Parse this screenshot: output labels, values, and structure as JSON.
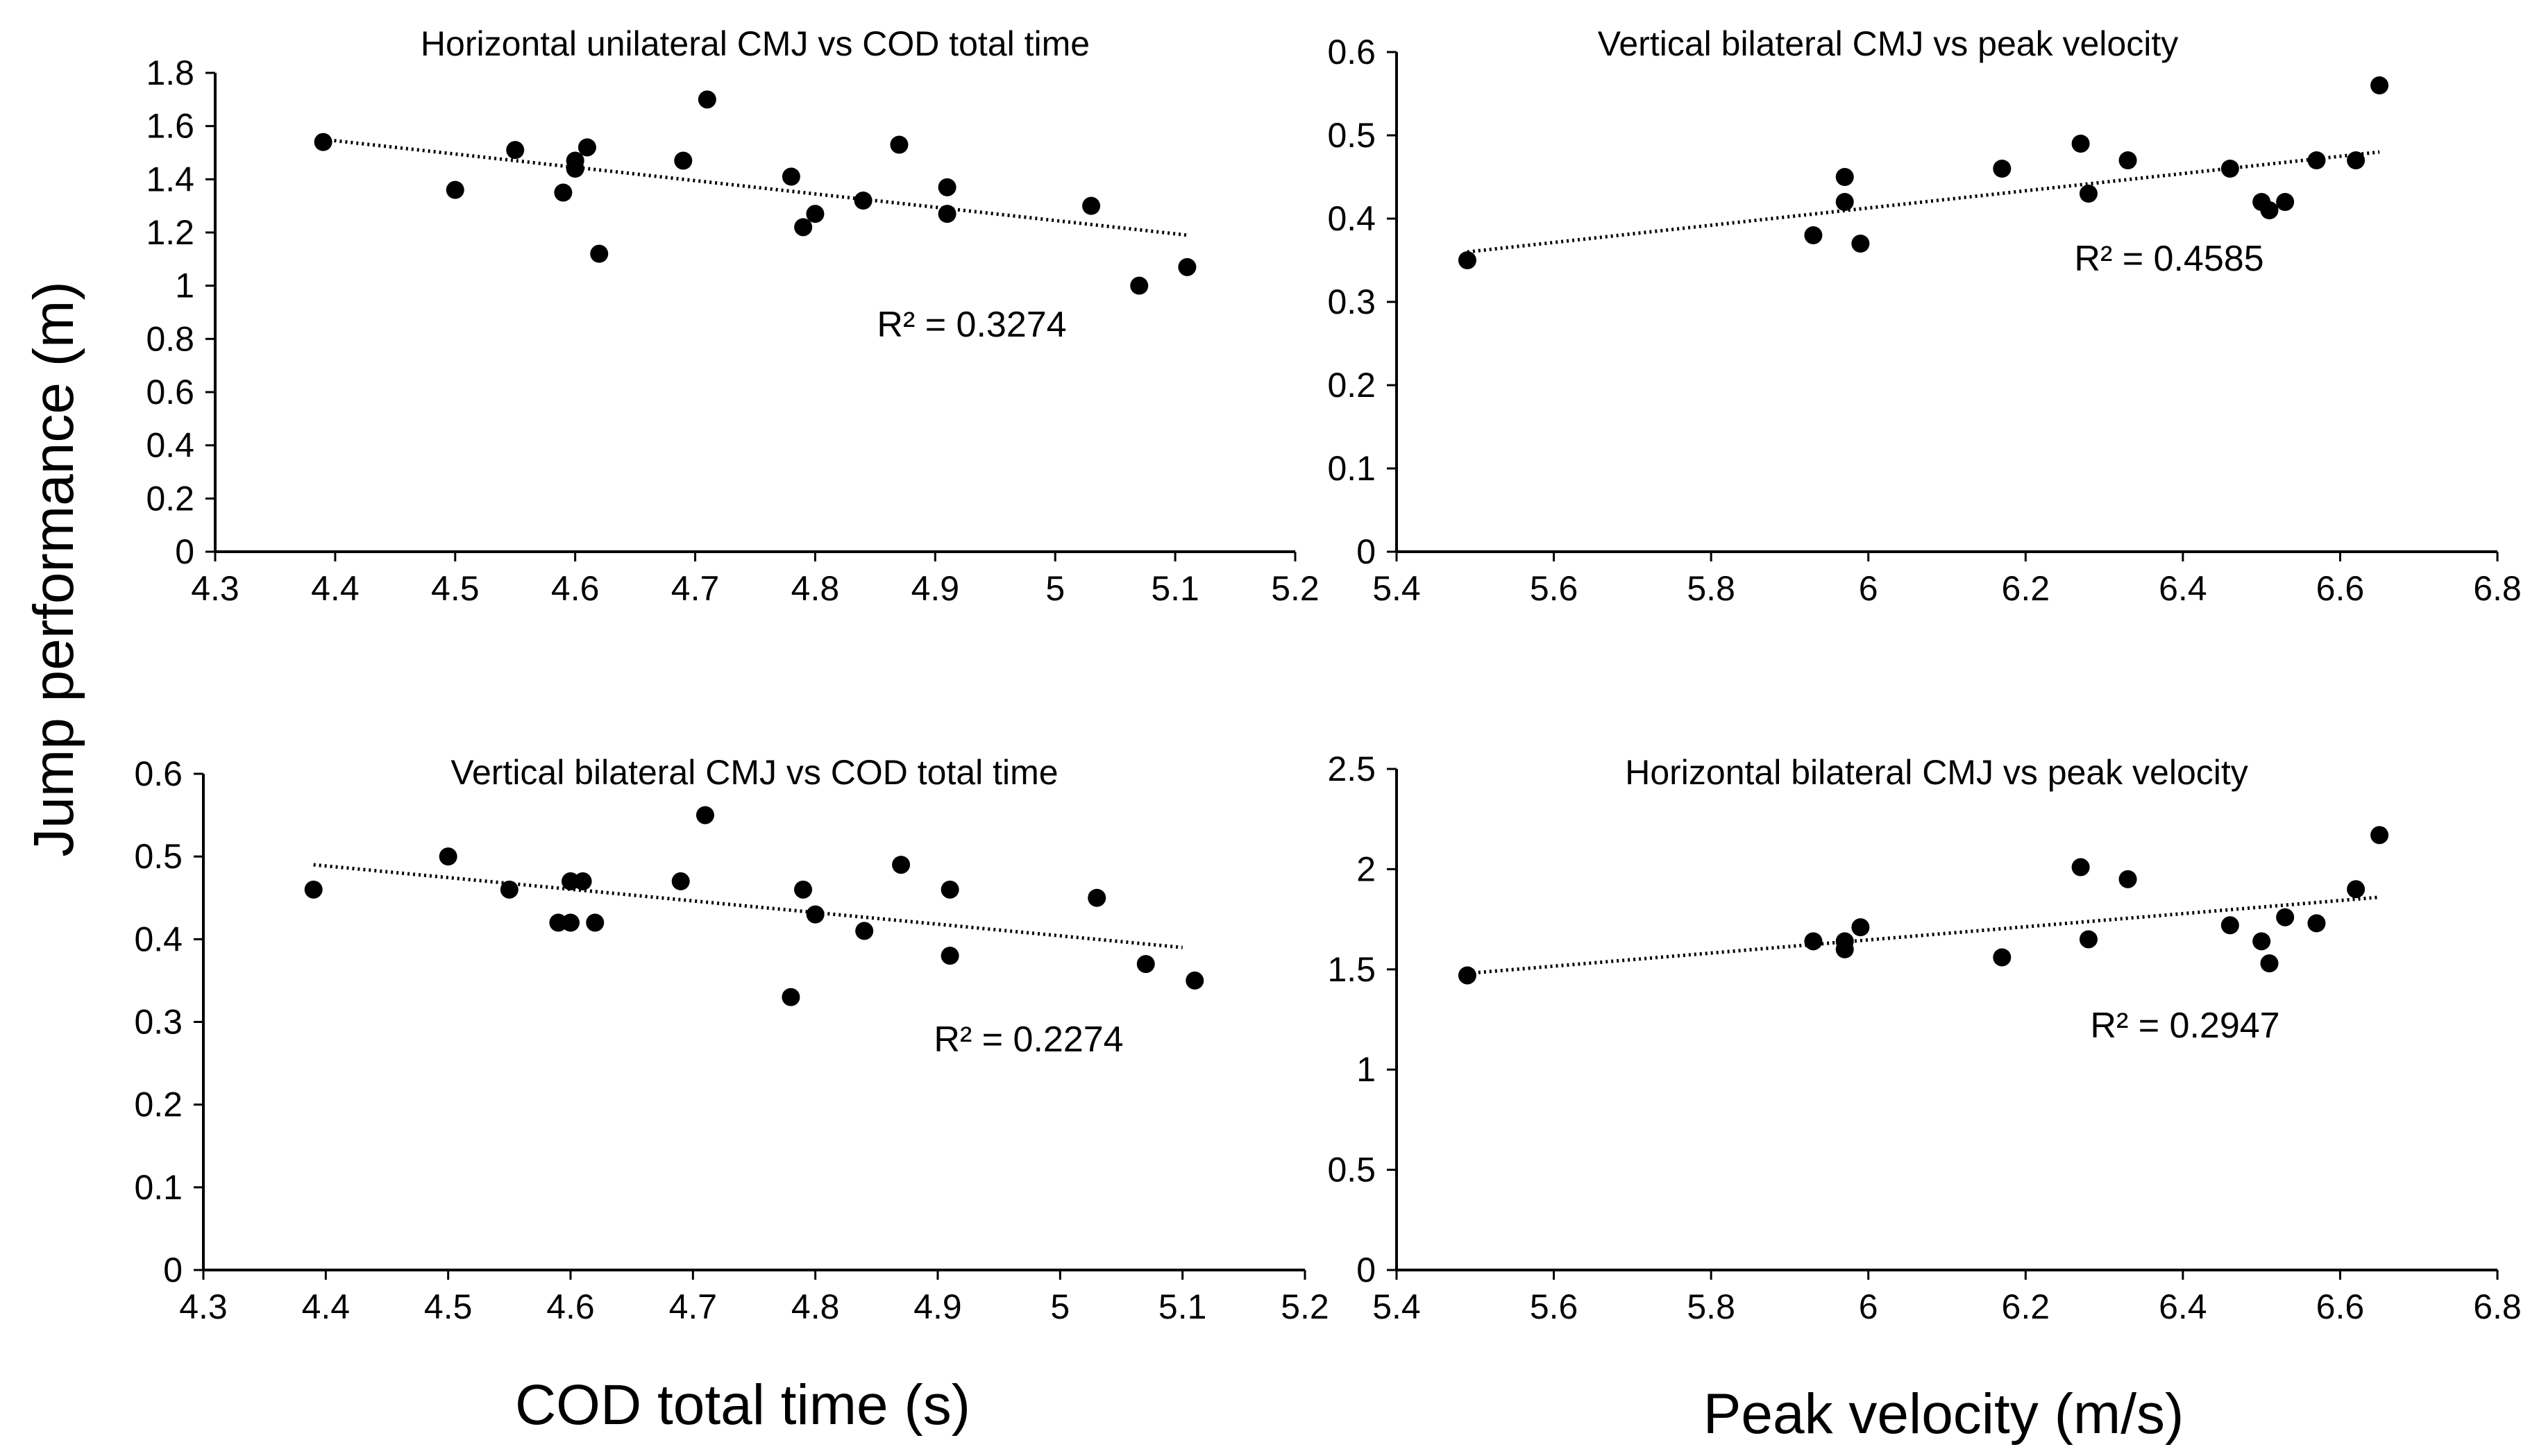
{
  "figure": {
    "ylabel": "Jump performance (m)",
    "xlabel_left": "COD total time (s)",
    "xlabel_right": "Peak velocity (m/s)"
  },
  "chart_data": [
    {
      "type": "scatter",
      "title": "Horizontal unilateral CMJ vs COD total time",
      "xlabel": "COD total time (s)",
      "ylabel": "Jump performance (m)",
      "xlim": [
        4.3,
        5.2
      ],
      "ylim": [
        0,
        1.8
      ],
      "xticks": [
        "4.3",
        "4.4",
        "4.5",
        "4.6",
        "4.7",
        "4.8",
        "4.9",
        "5",
        "5.1",
        "5.2"
      ],
      "yticks": [
        "0",
        "0.2",
        "0.4",
        "0.6",
        "0.8",
        "1",
        "1.2",
        "1.4",
        "1.6",
        "1.8"
      ],
      "r2": "R² = 0.3274",
      "trend": {
        "x": [
          4.39,
          5.11
        ],
        "y": [
          1.55,
          1.19
        ]
      },
      "points": [
        [
          4.39,
          1.54
        ],
        [
          4.5,
          1.36
        ],
        [
          4.55,
          1.51
        ],
        [
          4.59,
          1.35
        ],
        [
          4.6,
          1.47
        ],
        [
          4.6,
          1.44
        ],
        [
          4.61,
          1.52
        ],
        [
          4.62,
          1.12
        ],
        [
          4.69,
          1.47
        ],
        [
          4.71,
          1.7
        ],
        [
          4.78,
          1.41
        ],
        [
          4.79,
          1.22
        ],
        [
          4.8,
          1.27
        ],
        [
          4.84,
          1.32
        ],
        [
          4.87,
          1.53
        ],
        [
          4.91,
          1.37
        ],
        [
          4.91,
          1.27
        ],
        [
          5.03,
          1.3
        ],
        [
          5.07,
          1.0
        ],
        [
          5.11,
          1.07
        ]
      ]
    },
    {
      "type": "scatter",
      "title": "Vertical bilateral CMJ vs peak velocity",
      "xlabel": "Peak velocity (m/s)",
      "ylabel": "Jump performance (m)",
      "xlim": [
        5.4,
        6.8
      ],
      "ylim": [
        0,
        0.6
      ],
      "xticks": [
        "5.4",
        "5.6",
        "5.8",
        "6",
        "6.2",
        "6.4",
        "6.6",
        "6.8"
      ],
      "yticks": [
        "0",
        "0.1",
        "0.2",
        "0.3",
        "0.4",
        "0.5",
        "0.6"
      ],
      "r2": "R² = 0.4585",
      "trend": {
        "x": [
          5.49,
          6.65
        ],
        "y": [
          0.36,
          0.48
        ]
      },
      "points": [
        [
          5.49,
          0.35
        ],
        [
          5.93,
          0.38
        ],
        [
          5.97,
          0.45
        ],
        [
          5.97,
          0.42
        ],
        [
          5.99,
          0.37
        ],
        [
          6.17,
          0.46
        ],
        [
          6.27,
          0.49
        ],
        [
          6.28,
          0.43
        ],
        [
          6.33,
          0.47
        ],
        [
          6.46,
          0.46
        ],
        [
          6.5,
          0.42
        ],
        [
          6.51,
          0.41
        ],
        [
          6.53,
          0.42
        ],
        [
          6.57,
          0.47
        ],
        [
          6.62,
          0.47
        ],
        [
          6.65,
          0.56
        ]
      ]
    },
    {
      "type": "scatter",
      "title": "Vertical bilateral CMJ vs COD total time",
      "xlabel": "COD total time (s)",
      "ylabel": "Jump performance (m)",
      "xlim": [
        4.3,
        5.2
      ],
      "ylim": [
        0,
        0.6
      ],
      "xticks": [
        "4.3",
        "4.4",
        "4.5",
        "4.6",
        "4.7",
        "4.8",
        "4.9",
        "5",
        "5.1",
        "5.2"
      ],
      "yticks": [
        "0",
        "0.1",
        "0.2",
        "0.3",
        "0.4",
        "0.5",
        "0.6"
      ],
      "r2": "R² = 0.2274",
      "trend": {
        "x": [
          4.39,
          5.1
        ],
        "y": [
          0.49,
          0.39
        ]
      },
      "points": [
        [
          4.39,
          0.46
        ],
        [
          4.5,
          0.5
        ],
        [
          4.55,
          0.46
        ],
        [
          4.59,
          0.42
        ],
        [
          4.6,
          0.47
        ],
        [
          4.6,
          0.42
        ],
        [
          4.61,
          0.47
        ],
        [
          4.62,
          0.42
        ],
        [
          4.69,
          0.47
        ],
        [
          4.71,
          0.55
        ],
        [
          4.78,
          0.33
        ],
        [
          4.79,
          0.46
        ],
        [
          4.8,
          0.43
        ],
        [
          4.84,
          0.41
        ],
        [
          4.87,
          0.49
        ],
        [
          4.91,
          0.46
        ],
        [
          4.91,
          0.38
        ],
        [
          5.03,
          0.45
        ],
        [
          5.07,
          0.37
        ],
        [
          5.11,
          0.35
        ]
      ]
    },
    {
      "type": "scatter",
      "title": "Horizontal bilateral CMJ vs peak velocity",
      "xlabel": "Peak velocity (m/s)",
      "ylabel": "Jump performance (m)",
      "xlim": [
        5.4,
        6.8
      ],
      "ylim": [
        0,
        2.5
      ],
      "xticks": [
        "5.4",
        "5.6",
        "5.8",
        "6",
        "6.2",
        "6.4",
        "6.6",
        "6.8"
      ],
      "yticks": [
        "0",
        "0.5",
        "1",
        "1.5",
        "2",
        "2.5"
      ],
      "r2": "R² = 0.2947",
      "trend": {
        "x": [
          5.49,
          6.65
        ],
        "y": [
          1.48,
          1.86
        ]
      },
      "points": [
        [
          5.49,
          1.47
        ],
        [
          5.93,
          1.64
        ],
        [
          5.97,
          1.64
        ],
        [
          5.97,
          1.6
        ],
        [
          5.99,
          1.71
        ],
        [
          6.17,
          1.56
        ],
        [
          6.27,
          2.01
        ],
        [
          6.28,
          1.65
        ],
        [
          6.33,
          1.95
        ],
        [
          6.46,
          1.72
        ],
        [
          6.5,
          1.64
        ],
        [
          6.51,
          1.53
        ],
        [
          6.53,
          1.76
        ],
        [
          6.57,
          1.73
        ],
        [
          6.62,
          1.9
        ],
        [
          6.65,
          2.17
        ]
      ]
    }
  ]
}
